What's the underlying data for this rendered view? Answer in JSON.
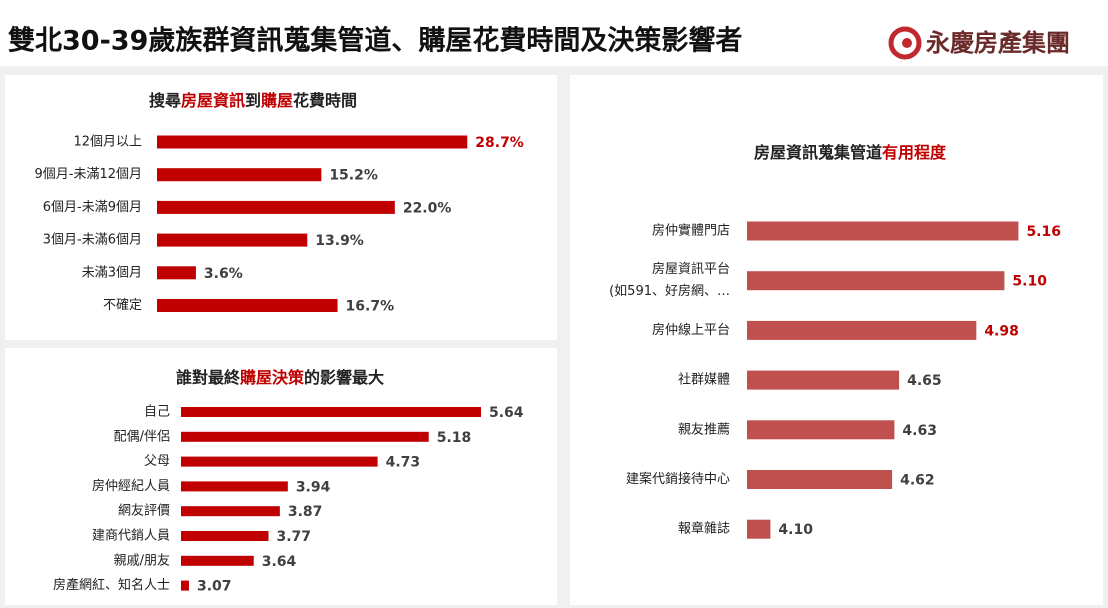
{
  "header": {
    "title": "雙北30-39歲族群資訊蒐集管道、購屋花費時間及決策影響者",
    "brand": "永慶房產集團"
  },
  "chart_data": [
    {
      "type": "hbar",
      "title": [
        {
          "text": "搜尋",
          "color": "#222222"
        },
        {
          "text": "房屋資訊",
          "color": "#c00000"
        },
        {
          "text": "到",
          "color": "#222222"
        },
        {
          "text": "購屋",
          "color": "#c00000"
        },
        {
          "text": "花費時間",
          "color": "#222222"
        }
      ],
      "categories": [
        "12個月以上",
        "9個月-未滿12個月",
        "6個月-未滿9個月",
        "3個月-未滿6個月",
        "未滿3個月",
        "不確定"
      ],
      "values": [
        28.7,
        15.2,
        22.0,
        13.9,
        3.6,
        16.7
      ],
      "value_labels": [
        "28.7%",
        "15.2%",
        "22.0%",
        "13.9%",
        "3.6%",
        "16.7%"
      ],
      "color": "#c00000",
      "label_color": "#404040",
      "highlight": 1,
      "highlight_color": "#c00000",
      "xlim": [
        0,
        37
      ]
    },
    {
      "type": "hbar",
      "title": [
        {
          "text": "誰對最終",
          "color": "#222222"
        },
        {
          "text": "購屋決策",
          "color": "#c00000"
        },
        {
          "text": "的影響最大",
          "color": "#222222"
        }
      ],
      "categories": [
        "自己",
        "配偶/伴侶",
        "父母",
        "房仲經紀人員",
        "網友評價",
        "建商代銷人員",
        "親戚/朋友",
        "房產網紅、知名人士"
      ],
      "values": [
        5.64,
        5.18,
        4.73,
        3.94,
        3.87,
        3.77,
        3.64,
        3.07
      ],
      "color": "#c00000",
      "label_color": "#404040",
      "highlight": 0,
      "highlight_color": "#c00000",
      "xlim": [
        3,
        6.3
      ]
    },
    {
      "type": "hbar",
      "title": [
        {
          "text": "房屋資訊蒐集管道",
          "color": "#222222"
        },
        {
          "text": "有用程度",
          "color": "#c00000"
        }
      ],
      "categories": [
        "房仲實體門店",
        [
          "房屋資訊平台",
          "(如591、好房網、…"
        ],
        "房仲線上平台",
        "社群媒體",
        "親友推薦",
        "建案代銷接待中心",
        "報章雜誌"
      ],
      "values": [
        5.16,
        5.1,
        4.98,
        4.65,
        4.63,
        4.62,
        4.1
      ],
      "value_labels": [
        "5.16",
        "5.10",
        "4.98",
        "4.65",
        "4.63",
        "4.62",
        "4.10"
      ],
      "color": "#c0504d",
      "label_color": "#404040",
      "highlight": 3,
      "highlight_color": "#c00000",
      "xlim": [
        4,
        5.5
      ]
    }
  ]
}
